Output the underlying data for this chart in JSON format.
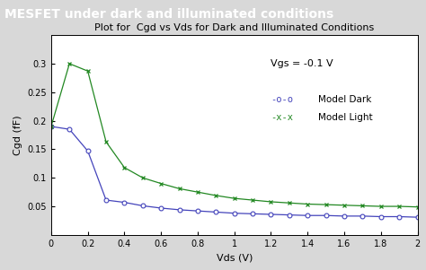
{
  "title": "Plot for  Cgd vs Vds for Dark and Illuminated Conditions",
  "xlabel": "Vds (V)",
  "ylabel": "Cgd (fF)",
  "annotation": "Vgs = -0.1 V",
  "legend_dark_marker": "-o-o",
  "legend_light_marker": "-x-x",
  "legend_dark_label": "Model Dark",
  "legend_light_label": "Model Light",
  "xlim": [
    0,
    2.0
  ],
  "ylim": [
    0.0,
    0.35
  ],
  "xticks": [
    0,
    0.2,
    0.4,
    0.6,
    0.8,
    1.0,
    1.2,
    1.4,
    1.6,
    1.8,
    2.0
  ],
  "yticks": [
    0.05,
    0.1,
    0.15,
    0.2,
    0.25,
    0.3
  ],
  "dark_color": "#4444bb",
  "light_color": "#228822",
  "fig_bg_color": "#d8d8d8",
  "plot_bg_color": "#ffffff",
  "header_color": "#222222",
  "vds_dark": [
    0.0,
    0.1,
    0.2,
    0.3,
    0.4,
    0.5,
    0.6,
    0.7,
    0.8,
    0.9,
    1.0,
    1.1,
    1.2,
    1.3,
    1.4,
    1.5,
    1.6,
    1.7,
    1.8,
    1.9,
    2.0
  ],
  "cgd_dark": [
    0.19,
    0.185,
    0.147,
    0.061,
    0.057,
    0.051,
    0.047,
    0.044,
    0.042,
    0.04,
    0.038,
    0.037,
    0.036,
    0.035,
    0.034,
    0.034,
    0.033,
    0.033,
    0.032,
    0.032,
    0.031
  ],
  "vds_light": [
    0.0,
    0.1,
    0.2,
    0.3,
    0.4,
    0.5,
    0.6,
    0.7,
    0.8,
    0.9,
    1.0,
    1.1,
    1.2,
    1.3,
    1.4,
    1.5,
    1.6,
    1.7,
    1.8,
    1.9,
    2.0
  ],
  "cgd_light": [
    0.19,
    0.3,
    0.287,
    0.163,
    0.118,
    0.1,
    0.09,
    0.081,
    0.075,
    0.069,
    0.064,
    0.061,
    0.058,
    0.056,
    0.054,
    0.053,
    0.052,
    0.051,
    0.05,
    0.05,
    0.049
  ],
  "header_text": "MESFET under dark and illuminated conditions",
  "header_fontsize": 10,
  "title_fontsize": 8,
  "tick_fontsize": 7,
  "label_fontsize": 8,
  "annot_fontsize": 8,
  "legend_fontsize": 7.5
}
